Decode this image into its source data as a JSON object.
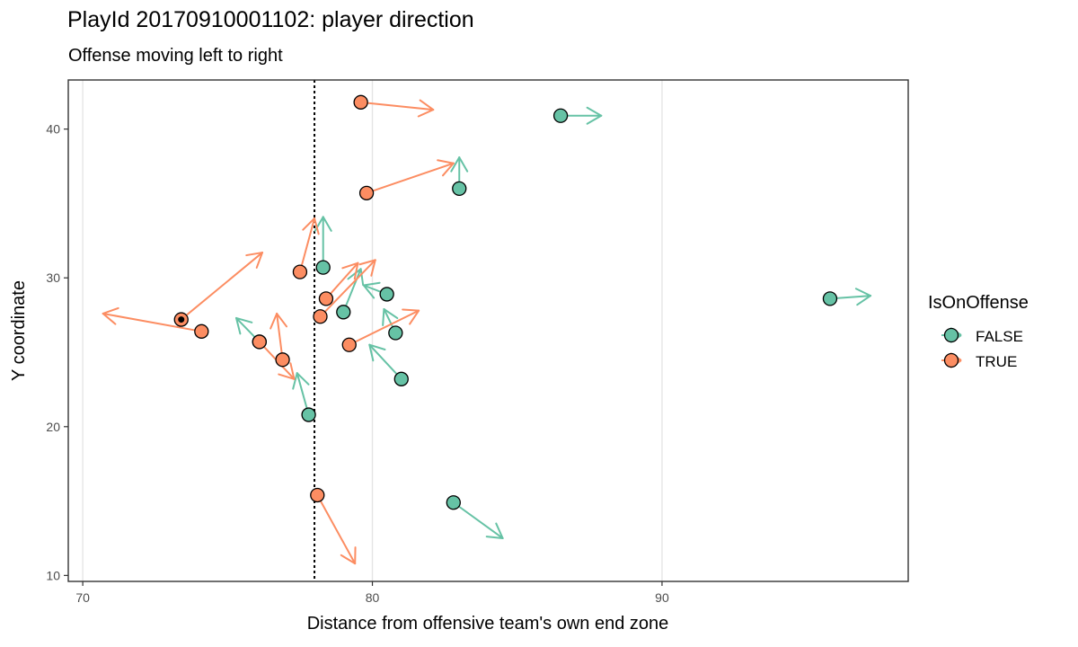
{
  "chart_data": {
    "type": "scatter",
    "title": "PlayId 20170910001102: player direction",
    "subtitle": "Offense moving left to right",
    "xlabel": "Distance from offensive team's own end zone",
    "ylabel": "Y coordinate",
    "xlim": [
      69.5,
      98.5
    ],
    "ylim": [
      9.6,
      43.3
    ],
    "xticks": [
      70,
      80,
      90
    ],
    "yticks": [
      10,
      20,
      30,
      40
    ],
    "grid": "vertical-major",
    "line_of_scrimmage": 78,
    "legend": {
      "title": "IsOnOffense",
      "position": "right",
      "entries": [
        {
          "label": "FALSE",
          "color": "#66c2a5"
        },
        {
          "label": "TRUE",
          "color": "#fc8d62"
        }
      ]
    },
    "series": [
      {
        "name": "FALSE",
        "color": "#66c2a5",
        "points": [
          {
            "x": 86.5,
            "y": 40.9,
            "dx": 1.4,
            "dy": 0.0
          },
          {
            "x": 83.0,
            "y": 36.0,
            "dx": 0.0,
            "dy": 2.1
          },
          {
            "x": 78.3,
            "y": 30.7,
            "dx": 0.0,
            "dy": 3.4
          },
          {
            "x": 79.0,
            "y": 27.7,
            "dx": 0.6,
            "dy": 2.9
          },
          {
            "x": 80.5,
            "y": 28.9,
            "dx": -0.8,
            "dy": 0.6
          },
          {
            "x": 80.8,
            "y": 26.3,
            "dx": -0.4,
            "dy": 1.6
          },
          {
            "x": 81.0,
            "y": 23.2,
            "dx": -1.1,
            "dy": 2.3
          },
          {
            "x": 77.8,
            "y": 20.8,
            "dx": -0.4,
            "dy": 2.8
          },
          {
            "x": 76.1,
            "y": 25.7,
            "dx": -0.8,
            "dy": 1.6
          },
          {
            "x": 95.8,
            "y": 28.6,
            "dx": 1.4,
            "dy": 0.2
          },
          {
            "x": 82.8,
            "y": 14.9,
            "dx": 1.7,
            "dy": -2.4
          }
        ]
      },
      {
        "name": "TRUE",
        "color": "#fc8d62",
        "points": [
          {
            "x": 79.6,
            "y": 41.8,
            "dx": 2.5,
            "dy": -0.5
          },
          {
            "x": 79.8,
            "y": 35.7,
            "dx": 3.0,
            "dy": 2.0
          },
          {
            "x": 77.5,
            "y": 30.4,
            "dx": 0.5,
            "dy": 3.6
          },
          {
            "x": 78.4,
            "y": 28.6,
            "dx": 1.1,
            "dy": 2.4
          },
          {
            "x": 78.2,
            "y": 27.4,
            "dx": 1.9,
            "dy": 3.8
          },
          {
            "x": 79.2,
            "y": 25.5,
            "dx": 2.4,
            "dy": 2.3
          },
          {
            "x": 73.4,
            "y": 27.2,
            "dx": 2.8,
            "dy": 4.5
          },
          {
            "x": 74.1,
            "y": 26.4,
            "dx": -3.4,
            "dy": 1.2
          },
          {
            "x": 76.1,
            "y": 25.7,
            "dx": 1.2,
            "dy": -2.5
          },
          {
            "x": 76.9,
            "y": 24.5,
            "dx": -0.2,
            "dy": 3.1
          },
          {
            "x": 78.1,
            "y": 15.4,
            "dx": 1.3,
            "dy": -4.6
          }
        ]
      }
    ],
    "highlight_points": [
      {
        "x": 73.4,
        "y": 27.2,
        "color": "#000000"
      }
    ]
  }
}
